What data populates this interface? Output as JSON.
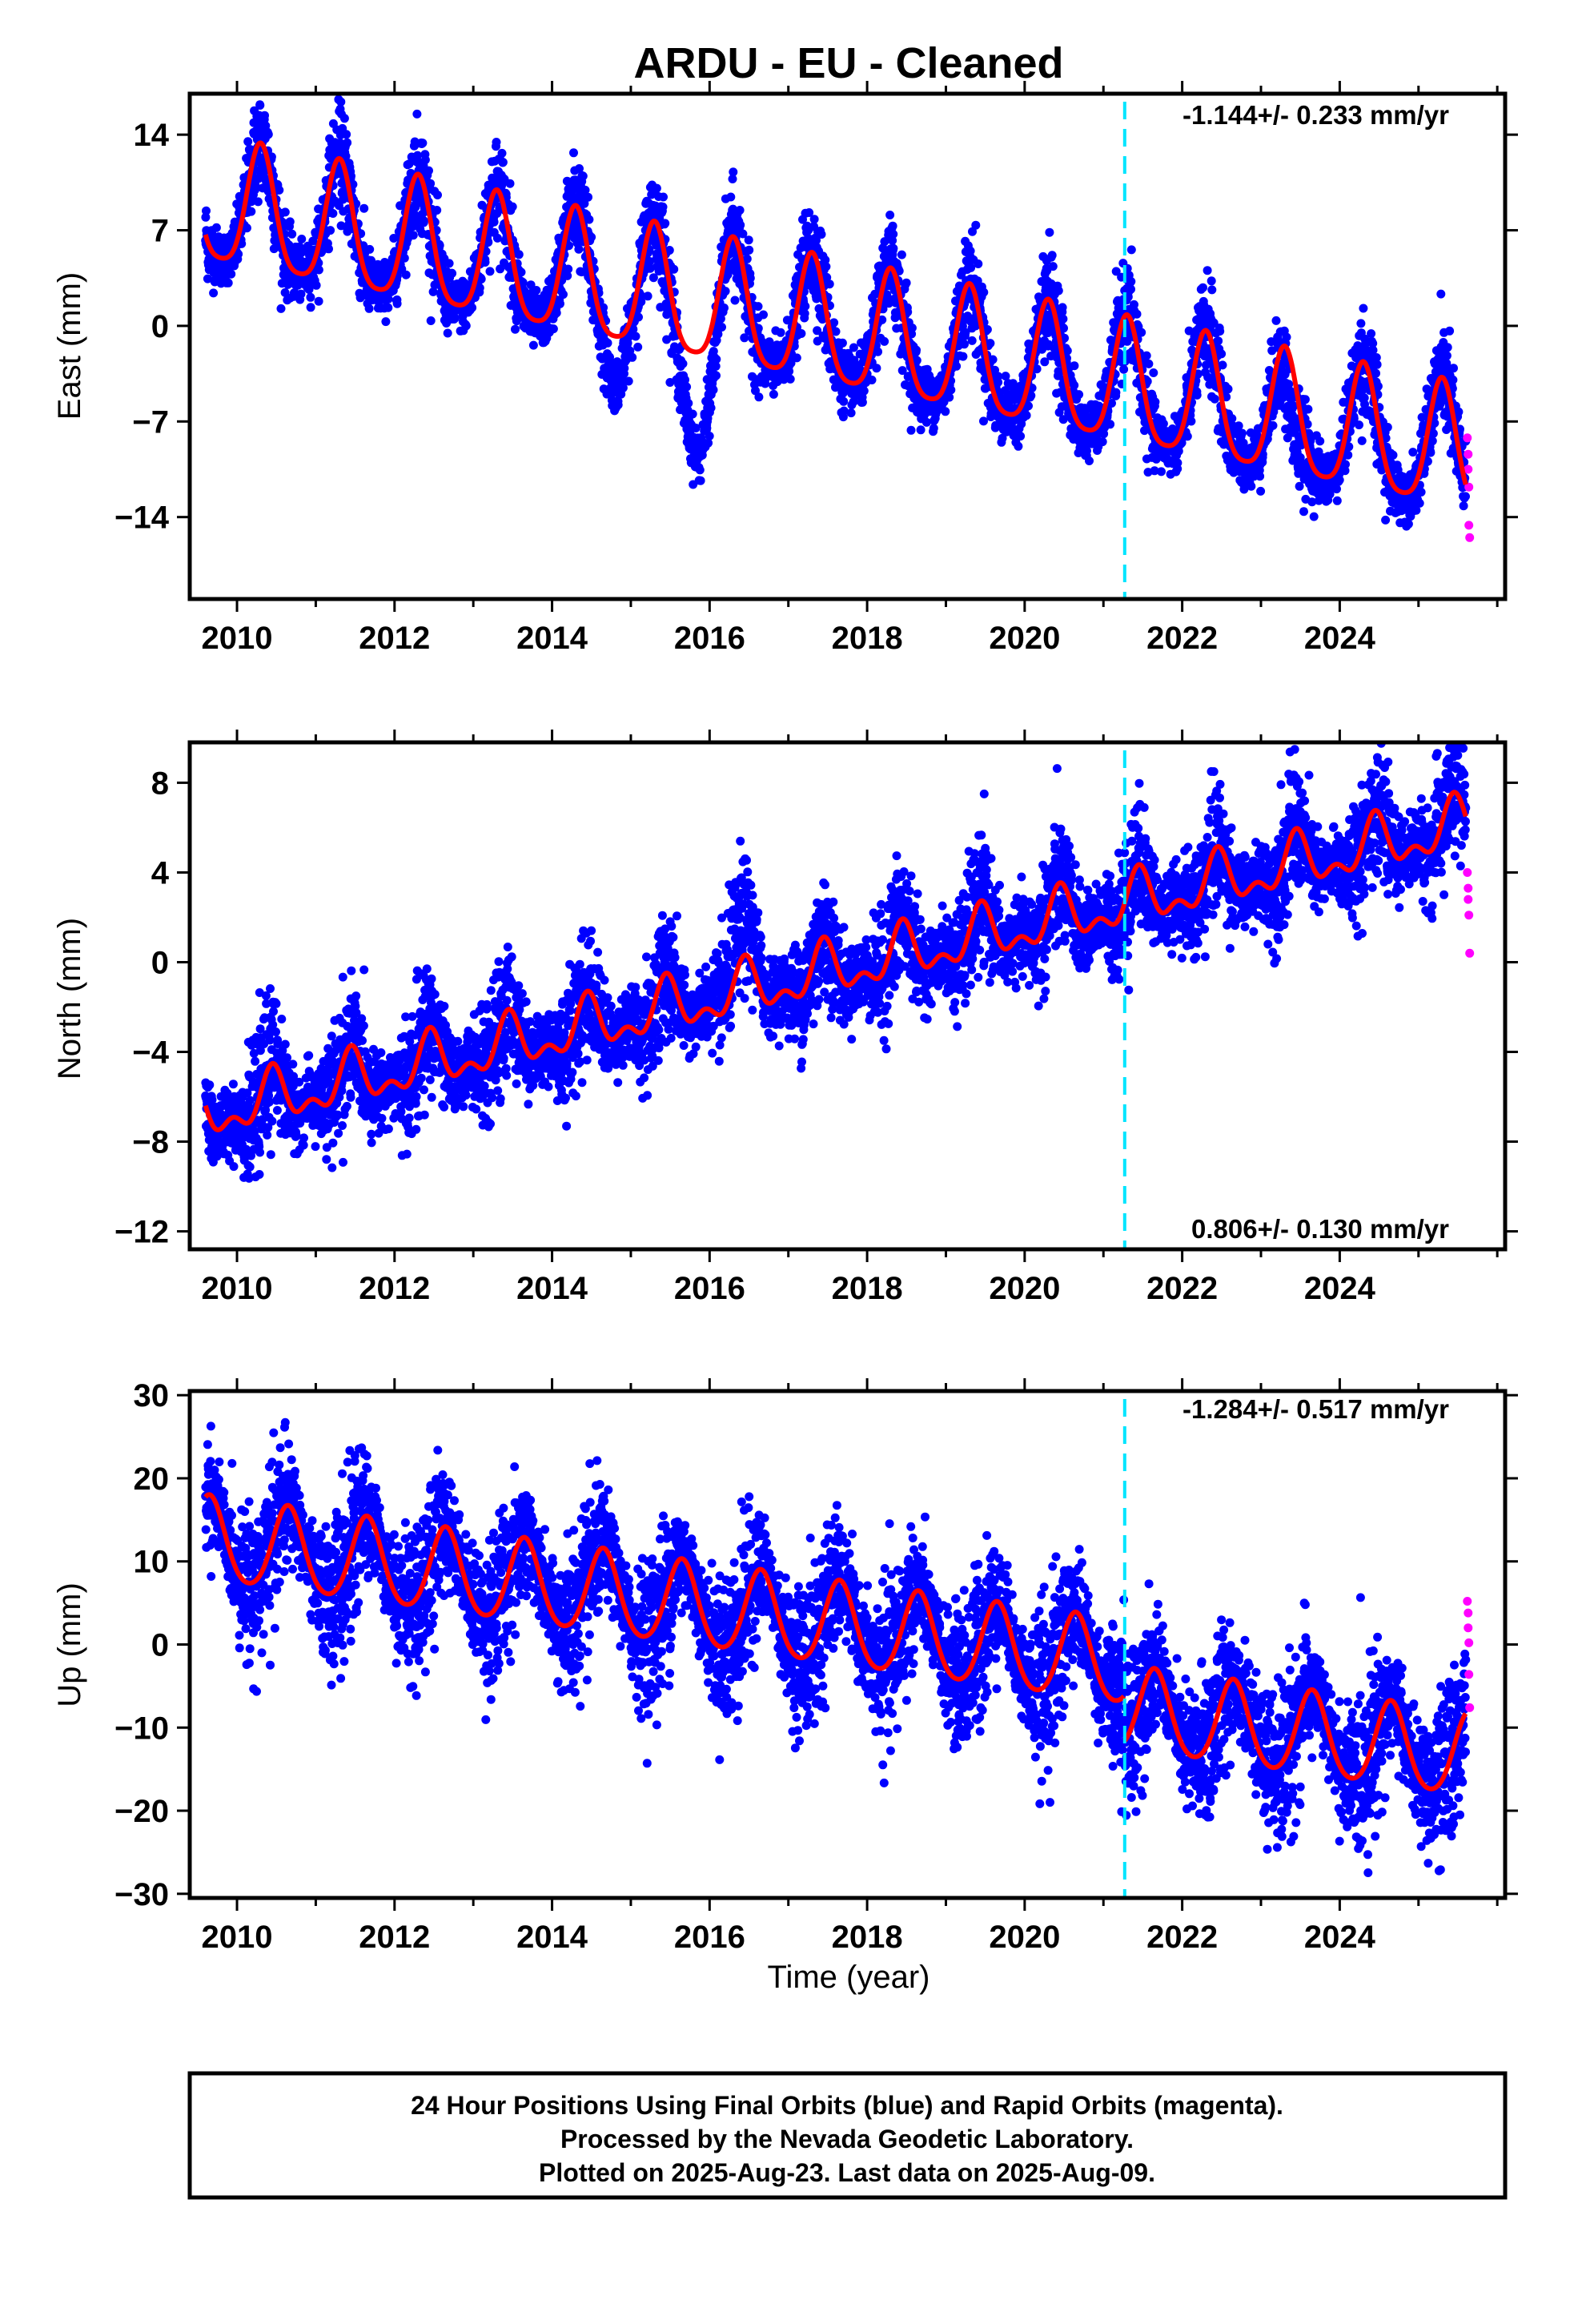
{
  "title": "ARDU  - EU - Cleaned",
  "colors": {
    "final_orbits": "#0000ff",
    "rapid_orbits": "#ff00ff",
    "model_fit": "#ff0000",
    "event_line": "#00e5ff",
    "frame": "#000000"
  },
  "caption": {
    "line1": "24 Hour Positions Using Final Orbits (blue) and Rapid Orbits (magenta).",
    "line2": "Processed by the Nevada Geodetic Laboratory.",
    "line3": "Plotted on 2025-Aug-23. Last data on 2025-Aug-09."
  },
  "chart_data": [
    {
      "type": "scatter",
      "component": "East",
      "ylabel": "East (mm)",
      "xlabel": "",
      "xlim": [
        2009.4,
        2026.1
      ],
      "ylim": [
        -20,
        17
      ],
      "yticks": [
        14,
        7,
        0,
        -7,
        -14
      ],
      "xticks": [
        2010,
        2012,
        2014,
        2016,
        2018,
        2020,
        2022,
        2024
      ],
      "rate_label": "-1.144+/- 0.233 mm/yr",
      "rate_position": "top-right",
      "event_line_x": 2021.27,
      "data_span": [
        2009.6,
        2025.6
      ],
      "model": {
        "intercept": 8.8,
        "rate": -1.144,
        "t0": 2009.6,
        "annual_amp": 4.5,
        "semiannual_amp": 0.9,
        "phase_peak": 2010.3,
        "offset_at_event": 0.0
      },
      "scatter_noise_mm": 1.4,
      "excursions": [
        {
          "center": 2015.85,
          "width": 0.22,
          "depth": -7.5
        },
        {
          "center": 2014.8,
          "width": 0.15,
          "depth": -3.5
        },
        {
          "center": 2023.4,
          "width": 0.12,
          "depth": -4.0
        }
      ],
      "rapid_points": [
        {
          "x": 2025.62,
          "y": -8.2
        },
        {
          "x": 2025.63,
          "y": -9.4
        },
        {
          "x": 2025.63,
          "y": -10.5
        },
        {
          "x": 2025.64,
          "y": -11.8
        },
        {
          "x": 2025.64,
          "y": -14.6
        },
        {
          "x": 2025.65,
          "y": -15.5
        }
      ]
    },
    {
      "type": "scatter",
      "component": "North",
      "ylabel": "North (mm)",
      "xlabel": "",
      "xlim": [
        2009.4,
        2026.1
      ],
      "ylim": [
        -12.8,
        9.8
      ],
      "yticks": [
        8,
        4,
        0,
        -4,
        -8,
        -12
      ],
      "xticks": [
        2010,
        2012,
        2014,
        2016,
        2018,
        2020,
        2022,
        2024
      ],
      "rate_label": "0.806+/- 0.130 mm/yr",
      "rate_position": "bottom-right",
      "event_line_x": 2021.27,
      "data_span": [
        2009.6,
        2025.6
      ],
      "model": {
        "intercept": -6.8,
        "rate": 0.806,
        "t0": 2009.6,
        "annual_amp": 1.0,
        "semiannual_amp": 0.6,
        "phase_peak": 2010.45,
        "offset_at_event": 0.0
      },
      "scatter_noise_mm": 1.1,
      "excursions": [
        {
          "center": 2016.4,
          "width": 0.3,
          "depth": 1.5
        }
      ],
      "rapid_points": [
        {
          "x": 2025.62,
          "y": 4.0
        },
        {
          "x": 2025.63,
          "y": 3.3
        },
        {
          "x": 2025.63,
          "y": 2.8
        },
        {
          "x": 2025.64,
          "y": 2.1
        },
        {
          "x": 2025.65,
          "y": 0.4
        }
      ]
    },
    {
      "type": "scatter",
      "component": "Up",
      "ylabel": "Up (mm)",
      "xlabel": "Time (year)",
      "xlim": [
        2009.4,
        2026.1
      ],
      "ylim": [
        -30.5,
        30.5
      ],
      "yticks": [
        30,
        20,
        10,
        0,
        -10,
        -20,
        -30
      ],
      "xticks": [
        2010,
        2012,
        2014,
        2016,
        2018,
        2020,
        2022,
        2024
      ],
      "rate_label": "-1.284+/- 0.517 mm/yr",
      "rate_position": "top-right",
      "event_line_x": 2021.27,
      "data_span": [
        2009.6,
        2025.6
      ],
      "model": {
        "intercept": 12.5,
        "rate": -1.284,
        "t0": 2009.6,
        "annual_amp": 5.0,
        "semiannual_amp": 0.6,
        "phase_peak": 2009.65,
        "offset_at_event": -5.5
      },
      "scatter_noise_mm": 3.8,
      "excursions": [],
      "rapid_points": [
        {
          "x": 2025.62,
          "y": 5.2
        },
        {
          "x": 2025.63,
          "y": 3.8
        },
        {
          "x": 2025.63,
          "y": 2.0
        },
        {
          "x": 2025.64,
          "y": 0.2
        },
        {
          "x": 2025.64,
          "y": -3.6
        },
        {
          "x": 2025.65,
          "y": -7.6
        }
      ]
    }
  ]
}
